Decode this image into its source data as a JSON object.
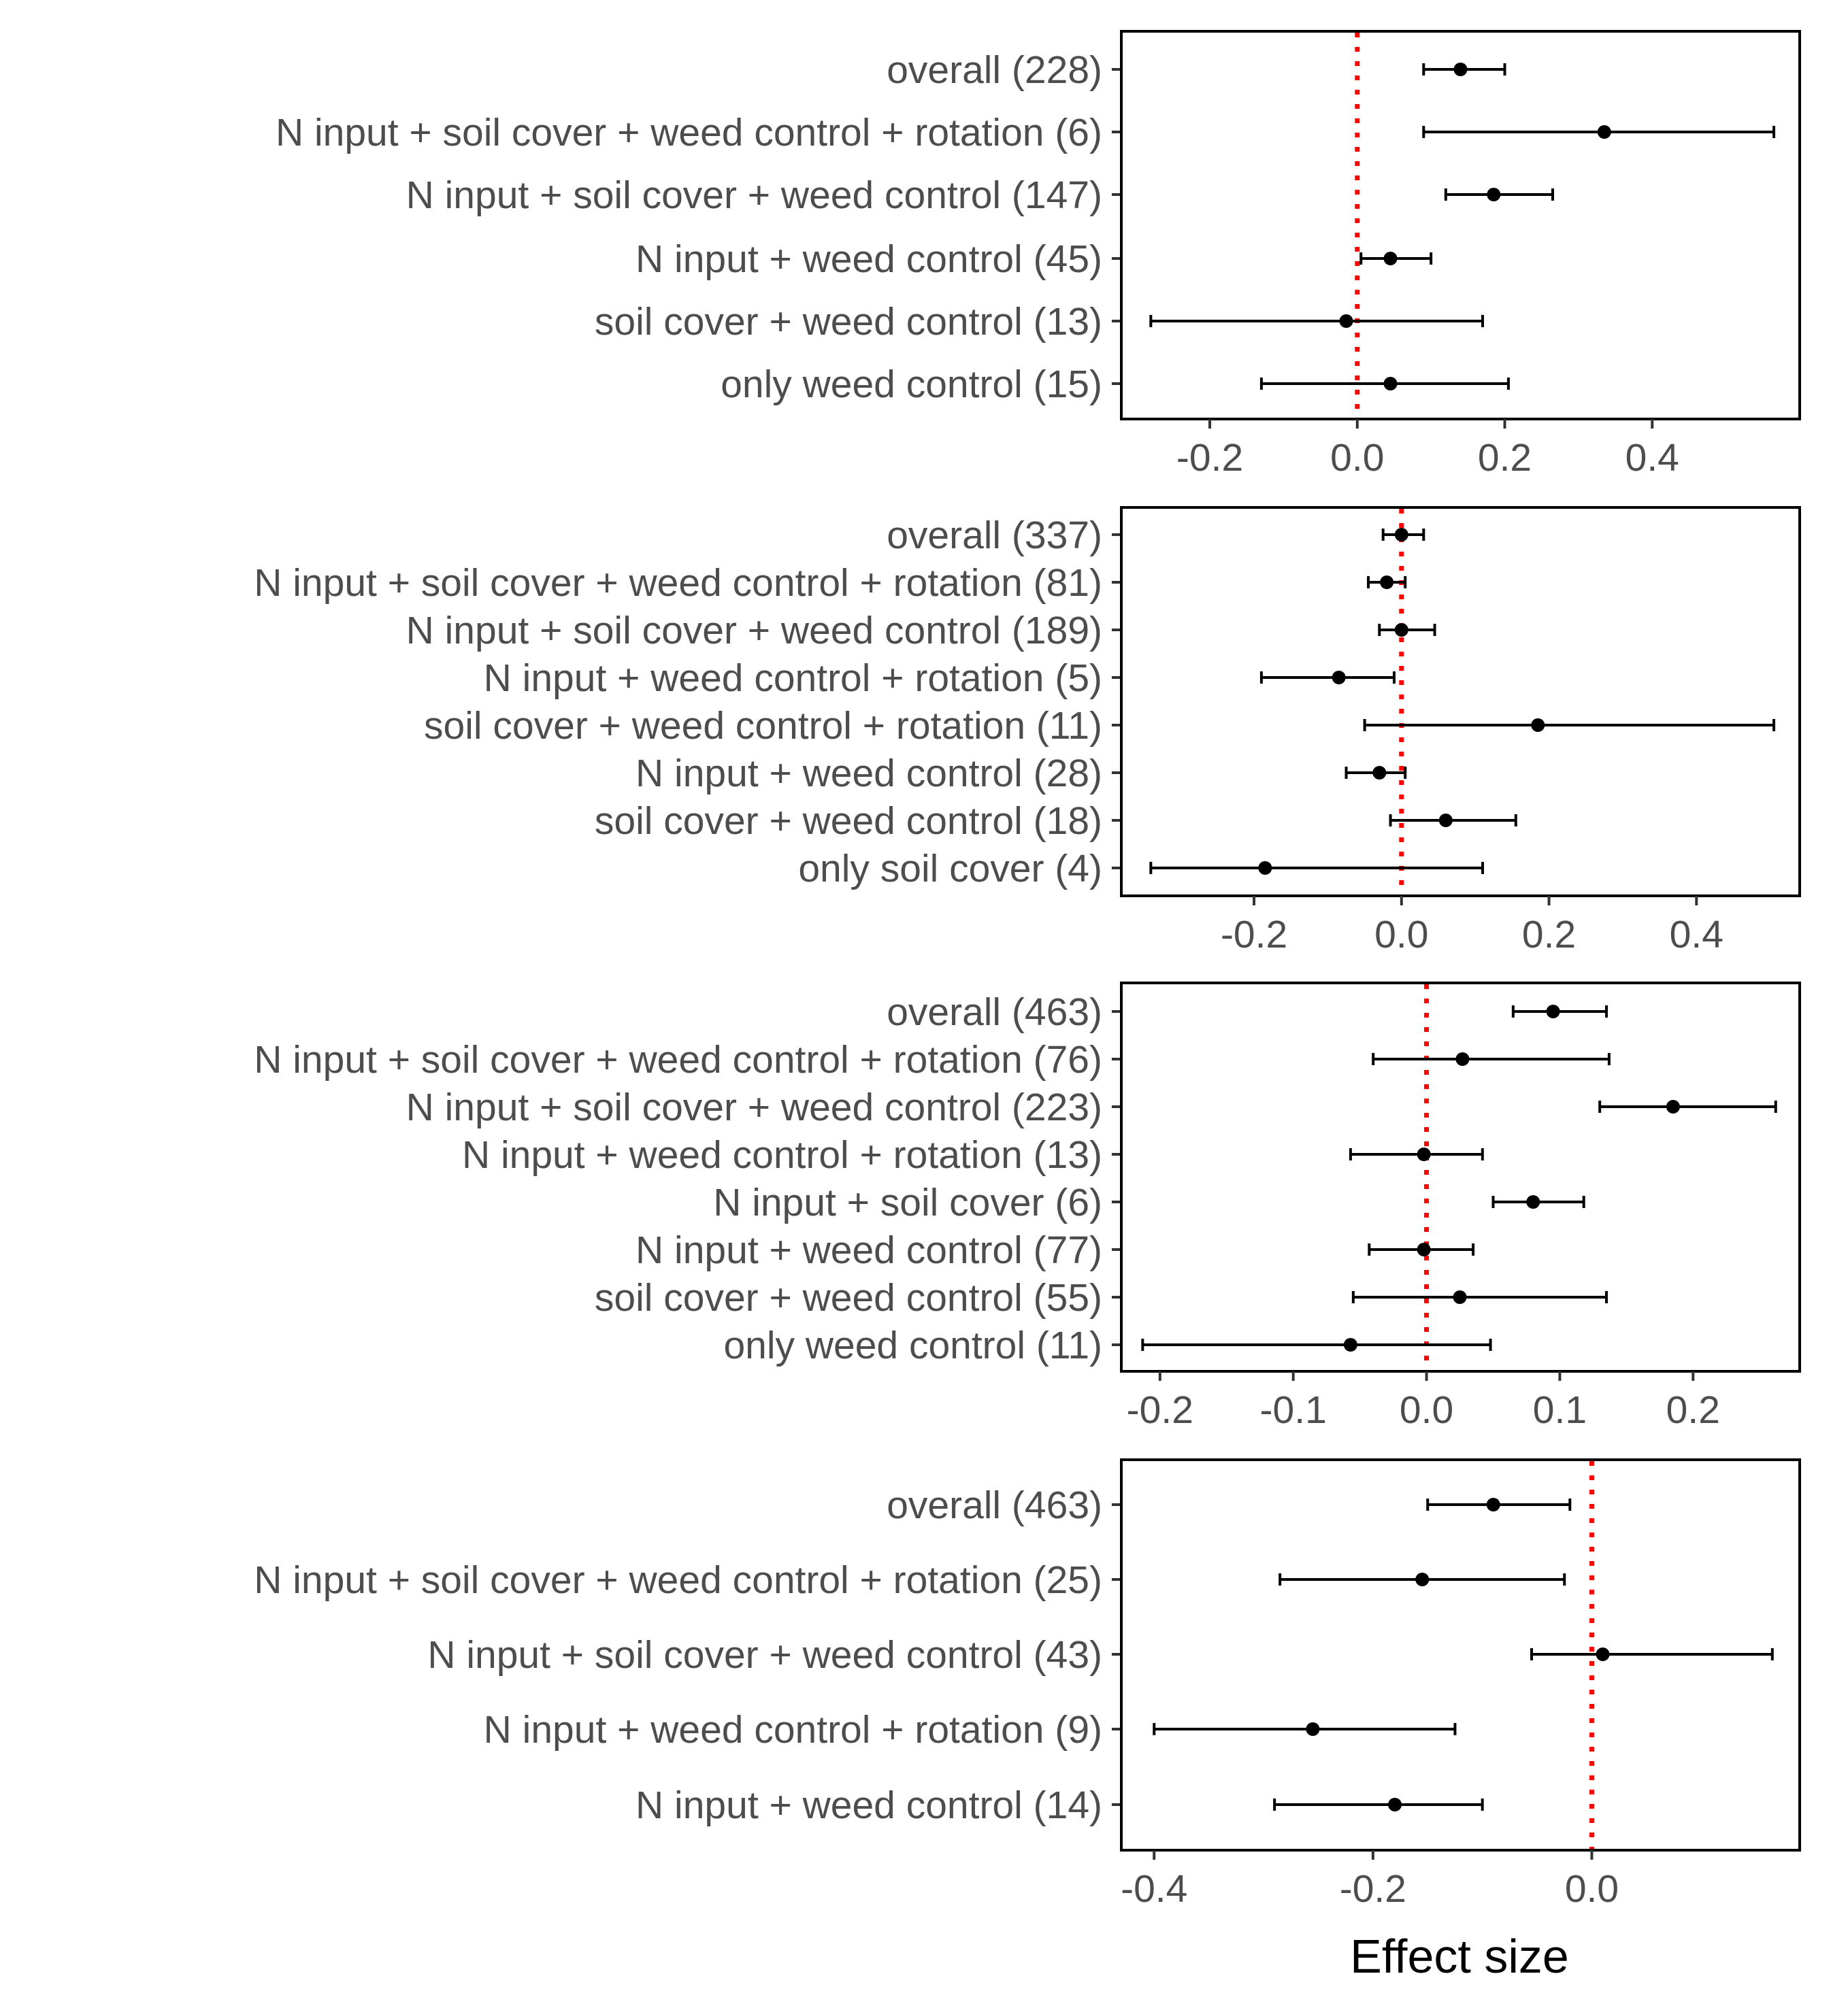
{
  "x_axis_title": "Effect size",
  "chart_data": [
    {
      "type": "forest",
      "rows": [
        {
          "label": "overall (228)",
          "estimate": 0.14,
          "ci_low": 0.09,
          "ci_high": 0.2
        },
        {
          "label": "N input  + soil cover  + weed control  + rotation (6)",
          "estimate": 0.335,
          "ci_low": 0.09,
          "ci_high": 0.565
        },
        {
          "label": "N input  + soil cover  + weed control (147)",
          "estimate": 0.185,
          "ci_low": 0.12,
          "ci_high": 0.265
        },
        {
          "label": "N input  + weed control (45)",
          "estimate": 0.045,
          "ci_low": 0.005,
          "ci_high": 0.1
        },
        {
          "label": "soil cover  + weed control (13)",
          "estimate": -0.015,
          "ci_low": -0.28,
          "ci_high": 0.17
        },
        {
          "label": "only weed control (15)",
          "estimate": 0.045,
          "ci_low": -0.13,
          "ci_high": 0.205
        }
      ],
      "xlim": [
        -0.32,
        0.6
      ],
      "xticks": [
        -0.2,
        0.0,
        0.2,
        0.4
      ],
      "xtick_labels": [
        "-0.2",
        "0.0",
        "0.2",
        "0.4"
      ],
      "reference_line": 0.0,
      "reference_color": "#ff0000"
    },
    {
      "type": "forest",
      "rows": [
        {
          "label": "overall (337)",
          "estimate": 0.0,
          "ci_low": -0.025,
          "ci_high": 0.03
        },
        {
          "label": "N input  + soil cover  + weed control  + rotation (81)",
          "estimate": -0.02,
          "ci_low": -0.045,
          "ci_high": 0.005
        },
        {
          "label": "N input  + soil cover  + weed control (189)",
          "estimate": 0.0,
          "ci_low": -0.03,
          "ci_high": 0.045
        },
        {
          "label": "N input  + weed control  + rotation (5)",
          "estimate": -0.085,
          "ci_low": -0.19,
          "ci_high": -0.01
        },
        {
          "label": "soil cover  + weed control  + rotation (11)",
          "estimate": 0.185,
          "ci_low": -0.05,
          "ci_high": 0.505
        },
        {
          "label": "N input  + weed control (28)",
          "estimate": -0.03,
          "ci_low": -0.075,
          "ci_high": 0.005
        },
        {
          "label": "soil cover  + weed control (18)",
          "estimate": 0.06,
          "ci_low": -0.015,
          "ci_high": 0.155
        },
        {
          "label": "only soil cover (4)",
          "estimate": -0.185,
          "ci_low": -0.34,
          "ci_high": 0.11
        }
      ],
      "xlim": [
        -0.38,
        0.54
      ],
      "xticks": [
        -0.2,
        0.0,
        0.2,
        0.4
      ],
      "xtick_labels": [
        "-0.2",
        "0.0",
        "0.2",
        "0.4"
      ],
      "reference_line": 0.0,
      "reference_color": "#ff0000"
    },
    {
      "type": "forest",
      "rows": [
        {
          "label": "overall (463)",
          "estimate": 0.095,
          "ci_low": 0.065,
          "ci_high": 0.135
        },
        {
          "label": "N input  + soil cover  + weed control  + rotation (76)",
          "estimate": 0.027,
          "ci_low": -0.04,
          "ci_high": 0.137
        },
        {
          "label": "N input  + soil cover  + weed control (223)",
          "estimate": 0.185,
          "ci_low": 0.13,
          "ci_high": 0.262
        },
        {
          "label": "N input  + weed control  + rotation (13)",
          "estimate": -0.002,
          "ci_low": -0.057,
          "ci_high": 0.042
        },
        {
          "label": "N input  + soil cover (6)",
          "estimate": 0.08,
          "ci_low": 0.05,
          "ci_high": 0.118
        },
        {
          "label": "N input  + weed control (77)",
          "estimate": -0.002,
          "ci_low": -0.043,
          "ci_high": 0.035
        },
        {
          "label": "soil cover  + weed control (55)",
          "estimate": 0.025,
          "ci_low": -0.055,
          "ci_high": 0.135
        },
        {
          "label": "only weed control (11)",
          "estimate": -0.057,
          "ci_low": -0.213,
          "ci_high": 0.048
        }
      ],
      "xlim": [
        -0.229,
        0.28
      ],
      "xticks": [
        -0.2,
        -0.1,
        0.0,
        0.1,
        0.2
      ],
      "xtick_labels": [
        "-0.2",
        "-0.1",
        "0.0",
        "0.1",
        "0.2"
      ],
      "reference_line": 0.0,
      "reference_color": "#ff0000"
    },
    {
      "type": "forest",
      "rows": [
        {
          "label": "overall (463)",
          "estimate": -0.09,
          "ci_low": -0.15,
          "ci_high": -0.02
        },
        {
          "label": "N input  + soil cover  + weed control  + rotation (25)",
          "estimate": -0.155,
          "ci_low": -0.285,
          "ci_high": -0.025
        },
        {
          "label": "N input  + soil cover  + weed control (43)",
          "estimate": 0.01,
          "ci_low": -0.055,
          "ci_high": 0.165
        },
        {
          "label": "N input  + weed control  + rotation (9)",
          "estimate": -0.255,
          "ci_low": -0.4,
          "ci_high": -0.125
        },
        {
          "label": "N input  + weed control (14)",
          "estimate": -0.18,
          "ci_low": -0.29,
          "ci_high": -0.1
        }
      ],
      "xlim": [
        -0.43,
        0.19
      ],
      "xticks": [
        -0.4,
        -0.2,
        0.0
      ],
      "xtick_labels": [
        "-0.4",
        "-0.2",
        "0.0"
      ],
      "reference_line": 0.0,
      "reference_color": "#ff0000"
    }
  ]
}
